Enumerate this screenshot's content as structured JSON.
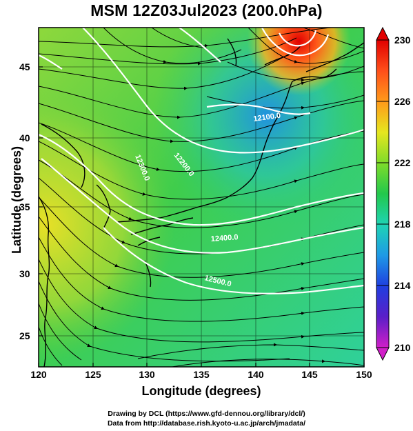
{
  "title": "MSM 12Z03Jul2023 (200.0hPa)",
  "x_axis": {
    "label": "Longitude (degrees)",
    "ticks": [
      "120",
      "125",
      "130",
      "135",
      "140",
      "145",
      "150"
    ]
  },
  "y_axis": {
    "label": "Latitude  (degrees)",
    "ticks": [
      "25",
      "30",
      "35",
      "40",
      "45"
    ]
  },
  "colorbar": {
    "ticks": [
      "230",
      "226",
      "222",
      "218",
      "214",
      "210"
    ]
  },
  "contour_labels": [
    "12100.0",
    "12200.0",
    "12300.0",
    "12400.0",
    "12500.0"
  ],
  "credits": {
    "line1": "Drawing by DCL (https://www.gfd-dennou.org/library/dcl/)",
    "line2": "Data from http://database.rish.kyoto-u.ac.jp/arch/jmadata/"
  },
  "colors": {
    "cold": "#1f6fe0",
    "mid": "#22c85a",
    "warm": "#e01010",
    "high": "#ff2a2a"
  }
}
